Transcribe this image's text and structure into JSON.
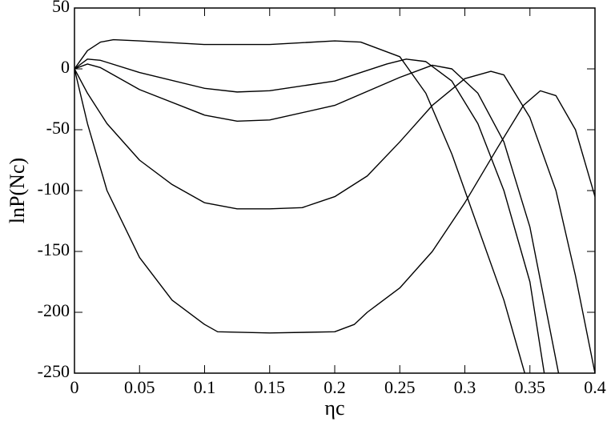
{
  "chart_data": {
    "type": "line",
    "xlabel": "ηc",
    "ylabel": "lnP(Nc)",
    "xlim": [
      0,
      0.4
    ],
    "xticks": [
      0,
      0.05,
      0.1,
      0.15,
      0.2,
      0.25,
      0.3,
      0.35,
      0.4
    ],
    "ylim": [
      -250,
      50
    ],
    "yticks": [
      -250,
      -200,
      -150,
      -100,
      -50,
      0,
      50
    ],
    "series": [
      {
        "color": "#000000",
        "x": [
          0,
          0.01,
          0.02,
          0.03,
          0.05,
          0.1,
          0.15,
          0.2,
          0.22,
          0.25,
          0.27,
          0.29,
          0.31,
          0.33,
          0.346
        ],
        "values": [
          0,
          15,
          22,
          24,
          23,
          20,
          20,
          23,
          22,
          10,
          -20,
          -70,
          -130,
          -190,
          -250
        ]
      },
      {
        "color": "#000000",
        "x": [
          0,
          0.01,
          0.02,
          0.05,
          0.1,
          0.125,
          0.15,
          0.2,
          0.24,
          0.255,
          0.27,
          0.29,
          0.31,
          0.33,
          0.35,
          0.361
        ],
        "values": [
          0,
          8,
          7,
          -3,
          -16,
          -19,
          -18,
          -10,
          4,
          8,
          6,
          -10,
          -45,
          -100,
          -175,
          -250
        ]
      },
      {
        "color": "#000000",
        "x": [
          0,
          0.01,
          0.02,
          0.05,
          0.1,
          0.125,
          0.15,
          0.2,
          0.25,
          0.275,
          0.29,
          0.31,
          0.33,
          0.35,
          0.372
        ],
        "values": [
          0,
          4,
          1,
          -17,
          -38,
          -43,
          -42,
          -30,
          -7,
          3,
          0,
          -20,
          -60,
          -130,
          -250
        ]
      },
      {
        "color": "#000000",
        "x": [
          0,
          0.01,
          0.025,
          0.05,
          0.075,
          0.1,
          0.125,
          0.15,
          0.175,
          0.2,
          0.225,
          0.25,
          0.275,
          0.3,
          0.32,
          0.33,
          0.35,
          0.37,
          0.385,
          0.4
        ],
        "values": [
          0,
          -20,
          -45,
          -75,
          -95,
          -110,
          -115,
          -115,
          -114,
          -105,
          -88,
          -60,
          -30,
          -8,
          -2,
          -5,
          -40,
          -100,
          -170,
          -250
        ]
      },
      {
        "color": "#000000",
        "x": [
          0,
          0.01,
          0.025,
          0.05,
          0.075,
          0.1,
          0.11,
          0.15,
          0.2,
          0.215,
          0.225,
          0.25,
          0.275,
          0.3,
          0.325,
          0.345,
          0.358,
          0.37,
          0.385,
          0.4
        ],
        "values": [
          0,
          -45,
          -100,
          -155,
          -190,
          -210,
          -216,
          -217,
          -216,
          -210,
          -200,
          -180,
          -150,
          -110,
          -65,
          -30,
          -18,
          -22,
          -50,
          -105
        ]
      }
    ]
  }
}
